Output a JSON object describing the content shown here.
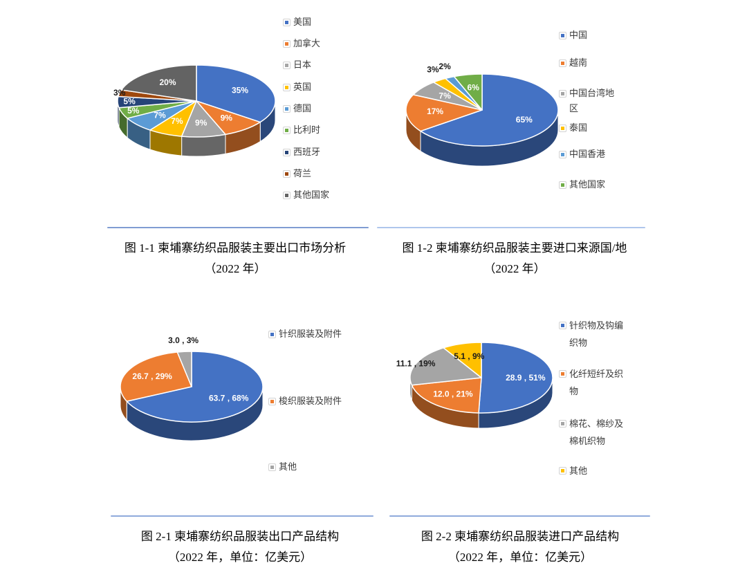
{
  "page": {
    "background": "#ffffff"
  },
  "style": {
    "divider_colors": [
      "#7F9CD2",
      "#AEC6EC",
      "#8FAADC",
      "#8FAADC"
    ],
    "label_inside_color": "#ffffff",
    "label_outside_color": "#1a1a1a",
    "legend_text_color": "#3b3b3b",
    "caption_text_color": "#000000"
  },
  "chart_data": [
    {
      "type": "pie",
      "style": "3d",
      "title": "图 1-1 柬埔寨纺织品服装主要出口市场分析（2022 年）",
      "title_lines": [
        "图 1-1 柬埔寨纺织品服装主要出口市场分析",
        "（2022 年）"
      ],
      "legend_position": "right",
      "labels_format": "percent",
      "slices": [
        {
          "label": "美国",
          "value": 35,
          "display": "35%",
          "color": "#4472C4"
        },
        {
          "label": "加拿大",
          "value": 9,
          "display": "9%",
          "color": "#ED7D31"
        },
        {
          "label": "日本",
          "value": 9,
          "display": "9%",
          "color": "#A5A5A5"
        },
        {
          "label": "英国",
          "value": 7,
          "display": "7%",
          "color": "#FFC000"
        },
        {
          "label": "德国",
          "value": 7,
          "display": "7%",
          "color": "#5B9BD5"
        },
        {
          "label": "比利时",
          "value": 5,
          "display": "5%",
          "color": "#70AD47"
        },
        {
          "label": "西班牙",
          "value": 5,
          "display": "5%",
          "color": "#264478"
        },
        {
          "label": "荷兰",
          "value": 3,
          "display": "3%",
          "color": "#9E480E",
          "label_outside": true
        },
        {
          "label": "其他国家",
          "value": 20,
          "display": "20%",
          "color": "#636363"
        }
      ]
    },
    {
      "type": "pie",
      "style": "3d",
      "title": "图 1-2 柬埔寨纺织品服装主要进口来源国/地（2022 年）",
      "title_lines": [
        "图 1-2 柬埔寨纺织品服装主要进口来源国/地",
        "（2022 年）"
      ],
      "legend_position": "right",
      "labels_format": "percent",
      "slices": [
        {
          "label": "中国",
          "value": 65,
          "display": "65%",
          "color": "#4472C4"
        },
        {
          "label": "越南",
          "value": 17,
          "display": "17%",
          "color": "#ED7D31"
        },
        {
          "label": "中国台湾地区",
          "value": 7,
          "display": "7%",
          "color": "#A5A5A5"
        },
        {
          "label": "泰国",
          "value": 3,
          "display": "3%",
          "color": "#FFC000",
          "label_outside": true
        },
        {
          "label": "中国香港",
          "value": 2,
          "display": "2%",
          "color": "#5B9BD5",
          "label_outside": true
        },
        {
          "label": "其他国家",
          "value": 6,
          "display": "6%",
          "color": "#70AD47"
        }
      ]
    },
    {
      "type": "pie",
      "style": "3d",
      "title": "图 2-1 柬埔寨纺织品服装出口产品结构（2022 年，单位：亿美元）",
      "title_lines": [
        "图 2-1 柬埔寨纺织品服装出口产品结构",
        "（2022 年，单位：亿美元）"
      ],
      "unit": "亿美元",
      "legend_position": "right",
      "labels_format": "value_percent",
      "slices": [
        {
          "label": "针织服装及附件",
          "value": 63.7,
          "pct": 68,
          "display": "63.7 , 68%",
          "color": "#4472C4"
        },
        {
          "label": "梭织服装及附件",
          "value": 26.7,
          "pct": 29,
          "display": "26.7 , 29%",
          "color": "#ED7D31"
        },
        {
          "label": "其他",
          "value": 3.0,
          "pct": 3,
          "display": "3.0 , 3%",
          "color": "#A5A5A5",
          "label_outside": true
        }
      ]
    },
    {
      "type": "pie",
      "style": "3d",
      "title": "图 2-2 柬埔寨纺织品服装进口产品结构（2022 年，单位：亿美元）",
      "title_lines": [
        "图 2-2 柬埔寨纺织品服装进口产品结构",
        "（2022 年，单位：亿美元）"
      ],
      "unit": "亿美元",
      "legend_position": "right",
      "labels_format": "value_percent",
      "slices": [
        {
          "label": "针织物及钩编织物",
          "value": 28.9,
          "pct": 51,
          "display": "28.9 , 51%",
          "color": "#4472C4"
        },
        {
          "label": "化纤短纤及织物",
          "value": 12.0,
          "pct": 21,
          "display": "12.0 , 21%",
          "color": "#ED7D31"
        },
        {
          "label": "棉花、棉纱及棉机织物",
          "value": 11.1,
          "pct": 19,
          "display": "11.1 , 19%",
          "color": "#A5A5A5",
          "label_outside": true
        },
        {
          "label": "其他",
          "value": 5.1,
          "pct": 9,
          "display": "5.1 , 9%",
          "color": "#FFC000",
          "label_dark": true
        }
      ]
    }
  ]
}
